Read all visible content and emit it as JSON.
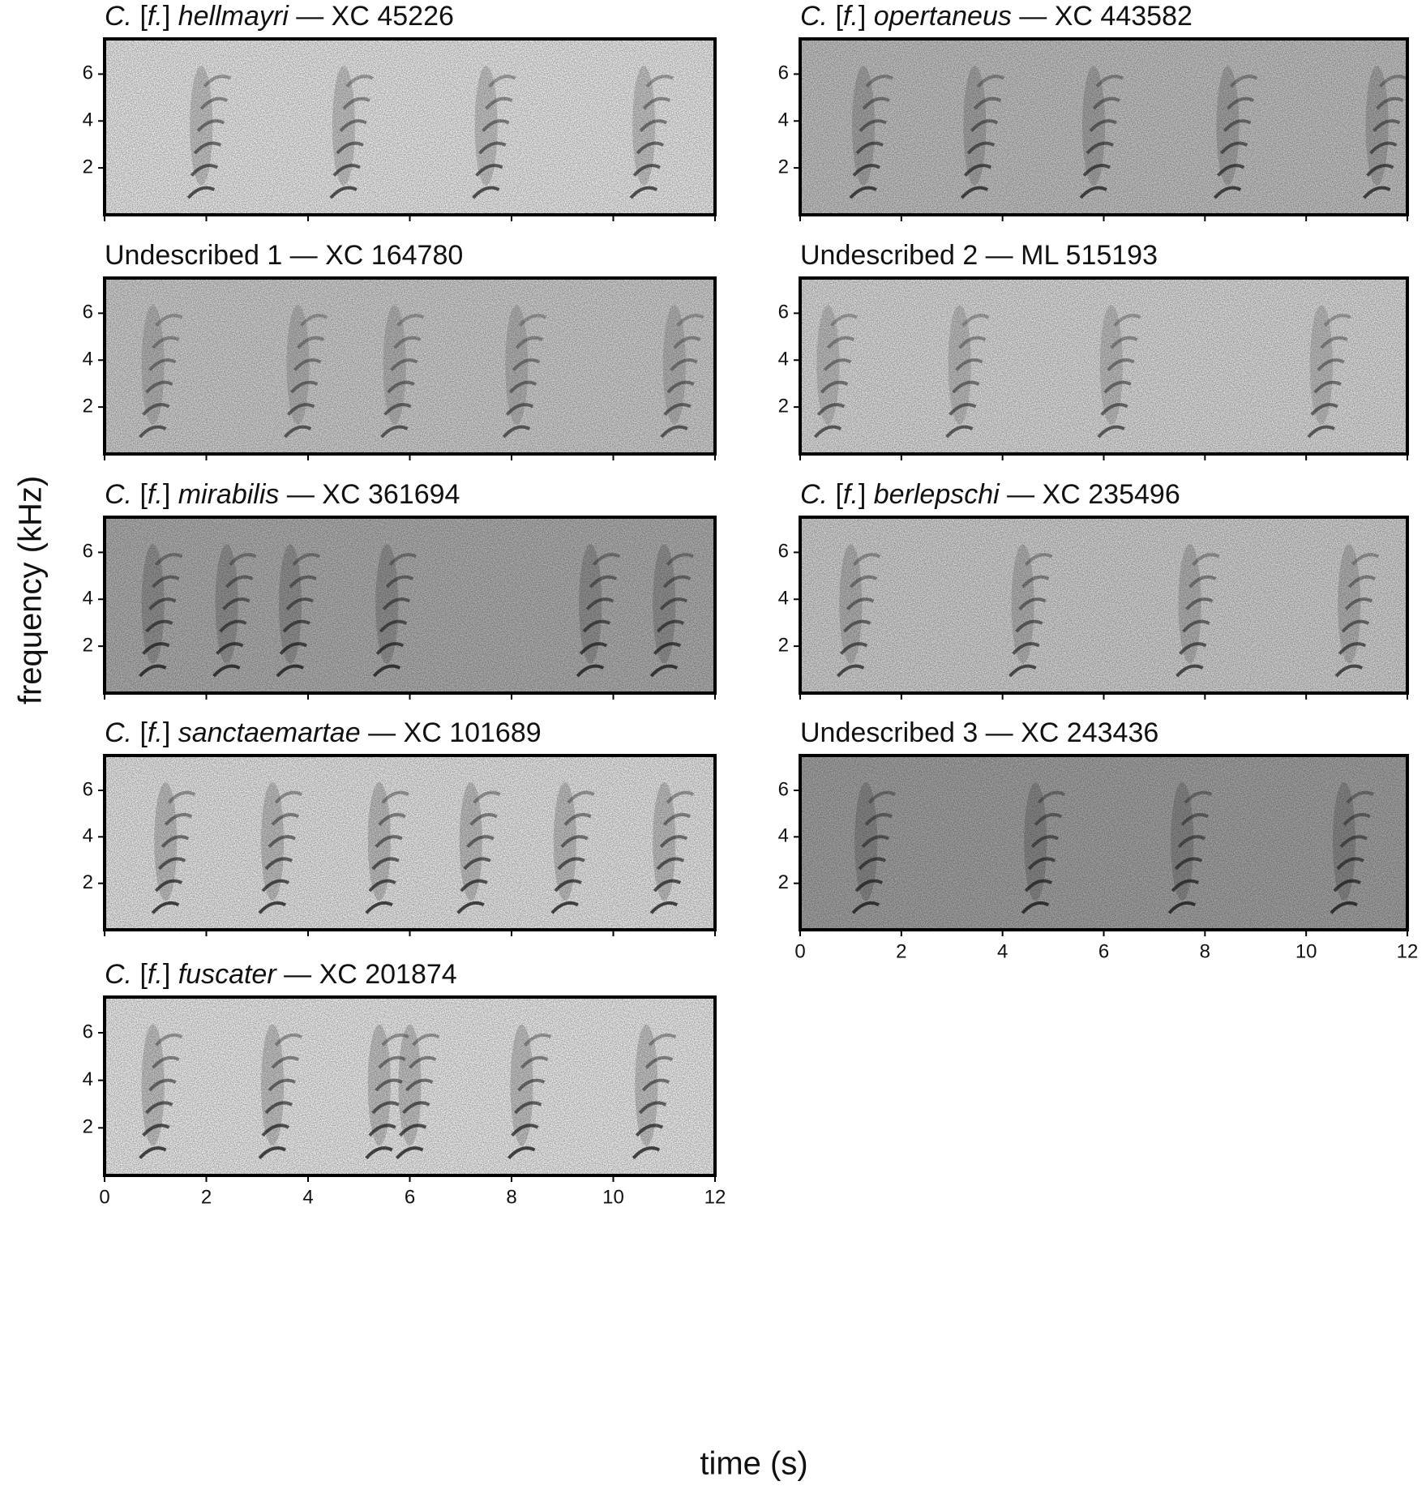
{
  "ylabel": "frequency (kHz)",
  "xlabel": "time (s)",
  "chart_data": [
    {
      "type": "spectrogram",
      "title_parts": [
        {
          "text": "C.",
          "italic": true
        },
        {
          "text": " [",
          "italic": false
        },
        {
          "text": "f.",
          "italic": true
        },
        {
          "text": "] ",
          "italic": false
        },
        {
          "text": "hellmayri",
          "italic": true
        },
        {
          "text": " — XC 45226",
          "italic": false
        }
      ],
      "xlim": [
        0,
        12
      ],
      "ylim": [
        0,
        7.5
      ],
      "xticks": [
        0,
        2,
        4,
        6,
        8,
        10,
        12
      ],
      "yticks": [
        2,
        4,
        6
      ],
      "show_xtick_labels": false,
      "background": "#f2f2f2",
      "ink": "#222",
      "song_times": [
        1.9,
        4.7,
        7.5,
        10.6
      ]
    },
    {
      "type": "spectrogram",
      "title_parts": [
        {
          "text": "C.",
          "italic": true
        },
        {
          "text": " [",
          "italic": false
        },
        {
          "text": "f.",
          "italic": true
        },
        {
          "text": "] ",
          "italic": false
        },
        {
          "text": "opertaneus",
          "italic": true
        },
        {
          "text": " — XC 443582",
          "italic": false
        }
      ],
      "xlim": [
        0,
        12
      ],
      "ylim": [
        0,
        7.5
      ],
      "xticks": [
        0,
        2,
        4,
        6,
        8,
        10,
        12
      ],
      "yticks": [
        2,
        4,
        6
      ],
      "show_xtick_labels": false,
      "background": "#c9c9c9",
      "ink": "#1a1a1a",
      "song_times": [
        1.25,
        3.45,
        5.8,
        8.45,
        11.4
      ]
    },
    {
      "type": "spectrogram",
      "title_parts": [
        {
          "text": "Undescribed 1 — XC 164780",
          "italic": false
        }
      ],
      "xlim": [
        0,
        12
      ],
      "ylim": [
        0,
        7.5
      ],
      "xticks": [
        0,
        2,
        4,
        6,
        8,
        10,
        12
      ],
      "yticks": [
        2,
        4,
        6
      ],
      "show_xtick_labels": false,
      "background": "#d6d6d6",
      "ink": "#333",
      "song_times": [
        0.95,
        3.8,
        5.7,
        8.1,
        11.2
      ]
    },
    {
      "type": "spectrogram",
      "title_parts": [
        {
          "text": "Undescribed 2 — ML 515193",
          "italic": false
        }
      ],
      "xlim": [
        0,
        12
      ],
      "ylim": [
        0,
        7.5
      ],
      "xticks": [
        0,
        2,
        4,
        6,
        8,
        10,
        12
      ],
      "yticks": [
        2,
        4,
        6
      ],
      "show_xtick_labels": false,
      "background": "#e3e3e3",
      "ink": "#333",
      "song_times": [
        0.55,
        3.15,
        6.15,
        10.3
      ]
    },
    {
      "type": "spectrogram",
      "title_parts": [
        {
          "text": "C.",
          "italic": true
        },
        {
          "text": " [",
          "italic": false
        },
        {
          "text": "f.",
          "italic": true
        },
        {
          "text": "] ",
          "italic": false
        },
        {
          "text": "mirabilis",
          "italic": true
        },
        {
          "text": " — XC 361694",
          "italic": false
        }
      ],
      "xlim": [
        0,
        12
      ],
      "ylim": [
        0,
        7.5
      ],
      "xticks": [
        0,
        2,
        4,
        6,
        8,
        10,
        12
      ],
      "yticks": [
        2,
        4,
        6
      ],
      "show_xtick_labels": false,
      "background": "#b5b5b5",
      "ink": "#111",
      "song_times": [
        0.95,
        2.4,
        3.65,
        5.55,
        9.55,
        11.0
      ]
    },
    {
      "type": "spectrogram",
      "title_parts": [
        {
          "text": "C.",
          "italic": true
        },
        {
          "text": " [",
          "italic": false
        },
        {
          "text": "f.",
          "italic": true
        },
        {
          "text": "] ",
          "italic": false
        },
        {
          "text": "berlepschi",
          "italic": true
        },
        {
          "text": " — XC 235496",
          "italic": false
        }
      ],
      "xlim": [
        0,
        12
      ],
      "ylim": [
        0,
        7.5
      ],
      "xticks": [
        0,
        2,
        4,
        6,
        8,
        10,
        12
      ],
      "yticks": [
        2,
        4,
        6
      ],
      "show_xtick_labels": false,
      "background": "#d9d9d9",
      "ink": "#222",
      "song_times": [
        1.0,
        4.4,
        7.7,
        10.85
      ]
    },
    {
      "type": "spectrogram",
      "title_parts": [
        {
          "text": "C.",
          "italic": true
        },
        {
          "text": " [",
          "italic": false
        },
        {
          "text": "f.",
          "italic": true
        },
        {
          "text": "] ",
          "italic": false
        },
        {
          "text": "sanctaemartae",
          "italic": true
        },
        {
          "text": " — XC 101689",
          "italic": false
        }
      ],
      "xlim": [
        0,
        12
      ],
      "ylim": [
        0,
        7.5
      ],
      "xticks": [
        0,
        2,
        4,
        6,
        8,
        10,
        12
      ],
      "yticks": [
        2,
        4,
        6
      ],
      "show_xtick_labels": false,
      "background": "#efefef",
      "ink": "#111",
      "song_times": [
        1.2,
        3.3,
        5.4,
        7.2,
        9.05,
        11.0
      ]
    },
    {
      "type": "spectrogram",
      "title_parts": [
        {
          "text": "Undescribed 3 — XC 243436",
          "italic": false
        }
      ],
      "xlim": [
        0,
        12
      ],
      "ylim": [
        0,
        7.5
      ],
      "xticks": [
        0,
        2,
        4,
        6,
        8,
        10,
        12
      ],
      "yticks": [
        2,
        4,
        6
      ],
      "show_xtick_labels": true,
      "background": "#a8a8a8",
      "ink": "#111",
      "song_times": [
        1.3,
        4.65,
        7.55,
        10.75
      ]
    },
    {
      "type": "spectrogram",
      "title_parts": [
        {
          "text": "C.",
          "italic": true
        },
        {
          "text": " [",
          "italic": false
        },
        {
          "text": "f.",
          "italic": true
        },
        {
          "text": "] ",
          "italic": false
        },
        {
          "text": "fuscater",
          "italic": true
        },
        {
          "text": " — XC 201874",
          "italic": false
        }
      ],
      "xlim": [
        0,
        12
      ],
      "ylim": [
        0,
        7.5
      ],
      "xticks": [
        0,
        2,
        4,
        6,
        8,
        10,
        12
      ],
      "yticks": [
        2,
        4,
        6
      ],
      "show_xtick_labels": true,
      "background": "#f4f4f4",
      "ink": "#111",
      "song_times": [
        0.95,
        3.3,
        5.4,
        6.0,
        8.2,
        10.65
      ]
    }
  ]
}
